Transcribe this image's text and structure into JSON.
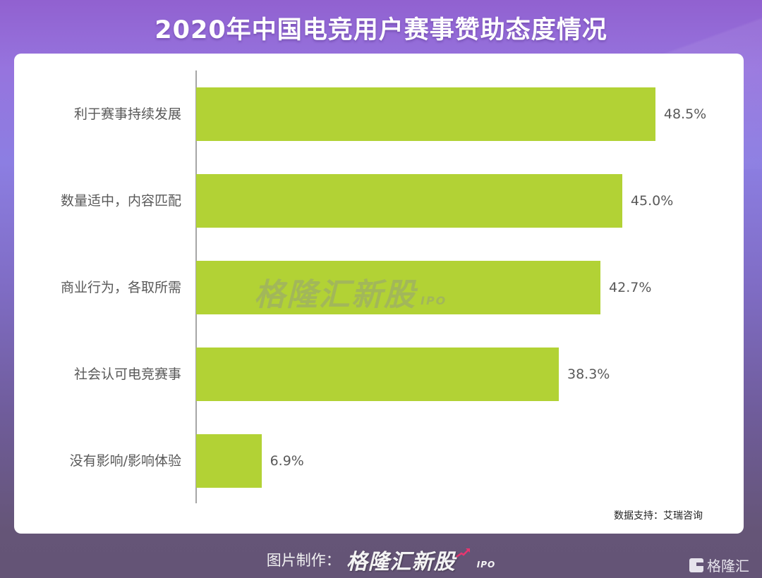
{
  "title": "2020年中国电竞用户赛事赞助态度情况",
  "chart_data": {
    "type": "bar",
    "orientation": "horizontal",
    "title": "2020年中国电竞用户赛事赞助态度情况",
    "xlabel": "",
    "ylabel": "",
    "categories": [
      "利于赛事持续发展",
      "数量适中，内容匹配",
      "商业行为，各取所需",
      "社会认可电竞赛事",
      "没有影响/影响体验"
    ],
    "values": [
      48.5,
      45.0,
      42.7,
      38.3,
      6.9
    ],
    "value_labels": [
      "48.5%",
      "45.0%",
      "42.7%",
      "38.3%",
      "6.9%"
    ],
    "unit": "%",
    "xlim": [
      0,
      50
    ],
    "grid": false,
    "legend": null,
    "bar_color": "#b2d235"
  },
  "source": "数据支持：艾瑞咨询",
  "watermark": {
    "main": "格隆汇新股",
    "sub": "IPO"
  },
  "footer": {
    "maker_label": "图片制作：",
    "brand": "格隆汇新股",
    "brand_sub": "IPO"
  },
  "logo": {
    "text": "格隆汇"
  },
  "colors": {
    "bar": "#b2d235",
    "label": "#595959",
    "axis": "#a6a6a6",
    "accent_arrow": "#e8356f"
  }
}
